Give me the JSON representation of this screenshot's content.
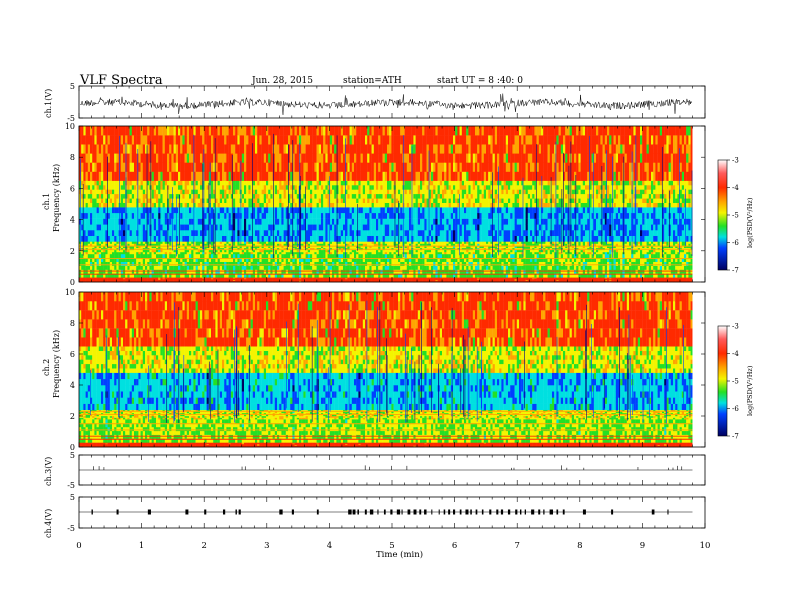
{
  "header": {
    "title": "VLF Spectra",
    "date": "Jun. 28, 2015",
    "station": "station=ATH",
    "start": "start UT = 8 :40: 0"
  },
  "chart_data": [
    {
      "type": "line",
      "panel": "ch1-waveform",
      "ylabel": "ch.1(V)",
      "ylim": [
        -5,
        5
      ],
      "y_ticks": [
        "5",
        "-5"
      ],
      "xlim": [
        0,
        10
      ]
    },
    {
      "type": "heatmap",
      "panel": "ch1-spectrogram",
      "ylabel_top": "ch.1",
      "ylabel": "Frequency (kHz)",
      "ylim": [
        0,
        10
      ],
      "y_ticks": [
        "0",
        "2",
        "4",
        "6",
        "8",
        "10"
      ],
      "xlim": [
        0,
        9.8
      ],
      "colorbar": {
        "label": "log(PSD(V²/Hz)",
        "ticks": [
          "-3",
          "-4",
          "-5",
          "-6",
          "-7"
        ],
        "range": [
          -7,
          -3
        ]
      },
      "bands": [
        {
          "f_kHz": [
            0,
            0.3
          ],
          "value": -3.6
        },
        {
          "f_kHz": [
            0.3,
            1.8
          ],
          "value": -4.9
        },
        {
          "f_kHz": [
            1.8,
            2.6
          ],
          "value": -4.7
        },
        {
          "f_kHz": [
            2.6,
            4.8
          ],
          "value": -5.6
        },
        {
          "f_kHz": [
            4.8,
            6.5
          ],
          "value": -4.6
        },
        {
          "f_kHz": [
            6.5,
            10
          ],
          "value": -3.8
        }
      ]
    },
    {
      "type": "heatmap",
      "panel": "ch2-spectrogram",
      "ylabel_top": "ch.2",
      "ylabel": "Frequency (kHz)",
      "ylim": [
        0,
        10
      ],
      "y_ticks": [
        "0",
        "2",
        "4",
        "6",
        "8",
        "10"
      ],
      "xlim": [
        0,
        9.8
      ],
      "colorbar": {
        "label": "log(PSD(V²/Hz)",
        "ticks": [
          "-3",
          "-4",
          "-5",
          "-6",
          "-7"
        ],
        "range": [
          -7,
          -3
        ]
      },
      "bands": [
        {
          "f_kHz": [
            0,
            0.3
          ],
          "value": -3.6
        },
        {
          "f_kHz": [
            0.3,
            1.8
          ],
          "value": -4.8
        },
        {
          "f_kHz": [
            1.8,
            2.4
          ],
          "value": -4.6
        },
        {
          "f_kHz": [
            2.4,
            4.8
          ],
          "value": -5.5
        },
        {
          "f_kHz": [
            4.8,
            6.5
          ],
          "value": -4.6
        },
        {
          "f_kHz": [
            6.5,
            10
          ],
          "value": -3.8
        }
      ]
    },
    {
      "type": "line",
      "panel": "ch3-waveform",
      "ylabel": "ch.3(V)",
      "ylim": [
        -5,
        5
      ],
      "y_ticks": [
        "5",
        "-5"
      ],
      "xlim": [
        0,
        10
      ]
    },
    {
      "type": "line",
      "panel": "ch4-waveform",
      "ylabel": "ch.4(V)",
      "ylim": [
        -5,
        5
      ],
      "y_ticks": [
        "5",
        "-5"
      ],
      "xlim": [
        0,
        10
      ]
    }
  ],
  "x_axis": {
    "label": "Time (min)",
    "ticks": [
      "0",
      "1",
      "2",
      "3",
      "4",
      "5",
      "6",
      "7",
      "8",
      "9",
      "10"
    ],
    "range": [
      0,
      10
    ]
  },
  "colors": {
    "red": "#ff2a00",
    "orange": "#ffa500",
    "yellow": "#f4f400",
    "green": "#24e024",
    "cyan": "#00e0e0",
    "blue": "#0040ff",
    "navy": "#000080"
  }
}
